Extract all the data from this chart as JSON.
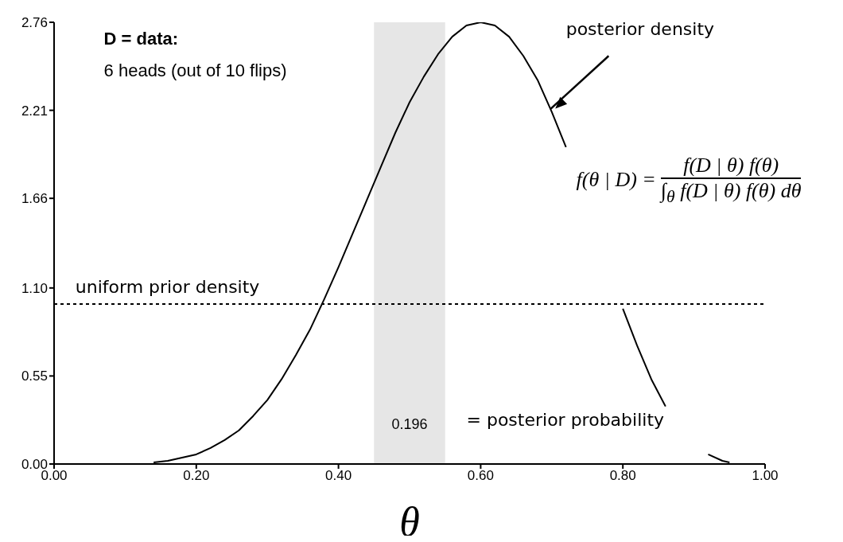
{
  "chart_data": {
    "type": "line",
    "xlabel": "θ",
    "x": [
      0.14,
      0.16,
      0.18,
      0.2,
      0.22,
      0.24,
      0.26,
      0.28,
      0.3,
      0.32,
      0.34,
      0.36,
      0.38,
      0.4,
      0.42,
      0.44,
      0.46,
      0.48,
      0.5,
      0.52,
      0.54,
      0.56,
      0.58,
      0.6,
      0.62,
      0.64,
      0.66,
      0.68,
      0.7,
      0.72,
      0.74,
      0.76,
      0.78,
      0.8,
      0.82,
      0.84,
      0.86,
      0.88,
      0.9,
      0.92,
      0.94,
      0.95
    ],
    "series": [
      {
        "color": "#000000",
        "values": [
          0.01,
          0.02,
          0.04,
          0.06,
          0.1,
          0.15,
          0.21,
          0.3,
          0.4,
          0.53,
          0.68,
          0.84,
          1.03,
          1.23,
          1.44,
          1.65,
          1.86,
          2.07,
          2.26,
          2.42,
          2.56,
          2.67,
          2.74,
          2.76,
          2.74,
          2.67,
          2.55,
          2.4,
          2.2,
          1.98,
          null,
          null,
          null,
          0.97,
          0.74,
          0.53,
          0.36,
          null,
          null,
          0.06,
          0.02,
          0.01
        ]
      }
    ],
    "xlim": [
      0,
      1
    ],
    "ylim": [
      0,
      2.76
    ],
    "xticks": [
      {
        "value": 0,
        "label": "0.00"
      },
      {
        "value": 0.2,
        "label": "0.20"
      },
      {
        "value": 0.4,
        "label": "0.40"
      },
      {
        "value": 0.6,
        "label": "0.60"
      },
      {
        "value": 0.8,
        "label": "0.80"
      },
      {
        "value": 1,
        "label": "1.00"
      }
    ],
    "yticks": [
      {
        "value": 0,
        "label": "0.00"
      },
      {
        "value": 0.55,
        "label": "0.55"
      },
      {
        "value": 1.1,
        "label": "1.10"
      },
      {
        "value": 1.66,
        "label": "1.66"
      },
      {
        "value": 2.21,
        "label": "2.21"
      },
      {
        "value": 2.76,
        "label": "2.76"
      }
    ],
    "ref_lines": [
      {
        "axis": "y",
        "value": 1,
        "label": "uniform prior density",
        "line_style": "dashed",
        "color": "#000000"
      }
    ],
    "bands": [
      {
        "axis": "x",
        "from": 0.45,
        "to": 0.55,
        "label": "0.196",
        "color": "#e6e6e6"
      }
    ],
    "annotations": [
      "D = data:",
      "6 heads (out of 10 flips)",
      {
        "text": "posterior density",
        "x": 0.7,
        "y": 2.2
      },
      "f(θ | D) =",
      "f(D | θ) f(θ)",
      "∫$_{θ}$ f(D | θ) f(θ) dθ",
      "= posterior probability"
    ],
    "grid": false,
    "legend": false,
    "marker": "none",
    "line_style": "solid"
  }
}
